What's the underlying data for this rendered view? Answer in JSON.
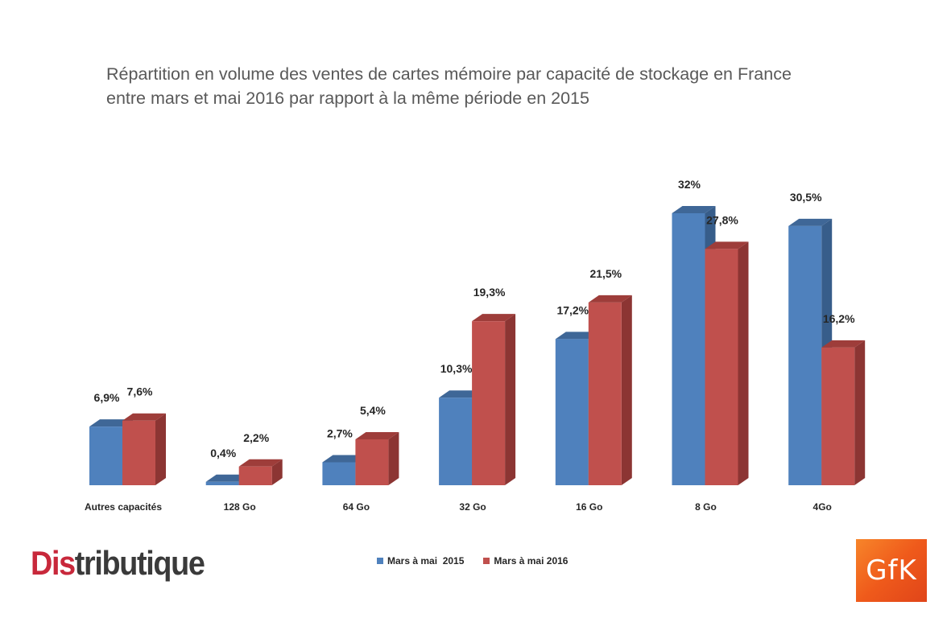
{
  "title_lines": [
    "Répartition en volume des ventes de cartes mémoire par capacité de stockage en France",
    "entre mars et mai 2016 par rapport à la même période en 2015"
  ],
  "logos": {
    "left": "Distributique",
    "right": "GfK"
  },
  "colors": {
    "series2015": "#4f81bd",
    "series2016": "#c0504d"
  },
  "chart_data": {
    "type": "bar",
    "title": "Répartition en volume des ventes de cartes mémoire par capacité de stockage en France entre mars et mai 2016 par rapport à la même période en 2015",
    "categories": [
      "Autres capacités",
      "128 Go",
      "64 Go",
      "32 Go",
      "16 Go",
      "8 Go",
      "4Go"
    ],
    "series": [
      {
        "name": "Mars à mai  2015",
        "values": [
          6.9,
          0.4,
          2.7,
          10.3,
          17.2,
          32,
          30.5
        ],
        "labels": [
          "6,9%",
          "0,4%",
          "2,7%",
          "10,3%",
          "17,2%",
          "32%",
          "30,5%"
        ]
      },
      {
        "name": "Mars à mai 2016",
        "values": [
          7.6,
          2.2,
          5.4,
          19.3,
          21.5,
          27.8,
          16.2
        ],
        "labels": [
          "7,6%",
          "2,2%",
          "5,4%",
          "19,3%",
          "21,5%",
          "27,8%",
          "16,2%"
        ]
      }
    ],
    "unit": "%",
    "ylim": [
      0,
      32
    ],
    "grid": false,
    "legend": "bottom",
    "style": "3d-clustered-column"
  }
}
